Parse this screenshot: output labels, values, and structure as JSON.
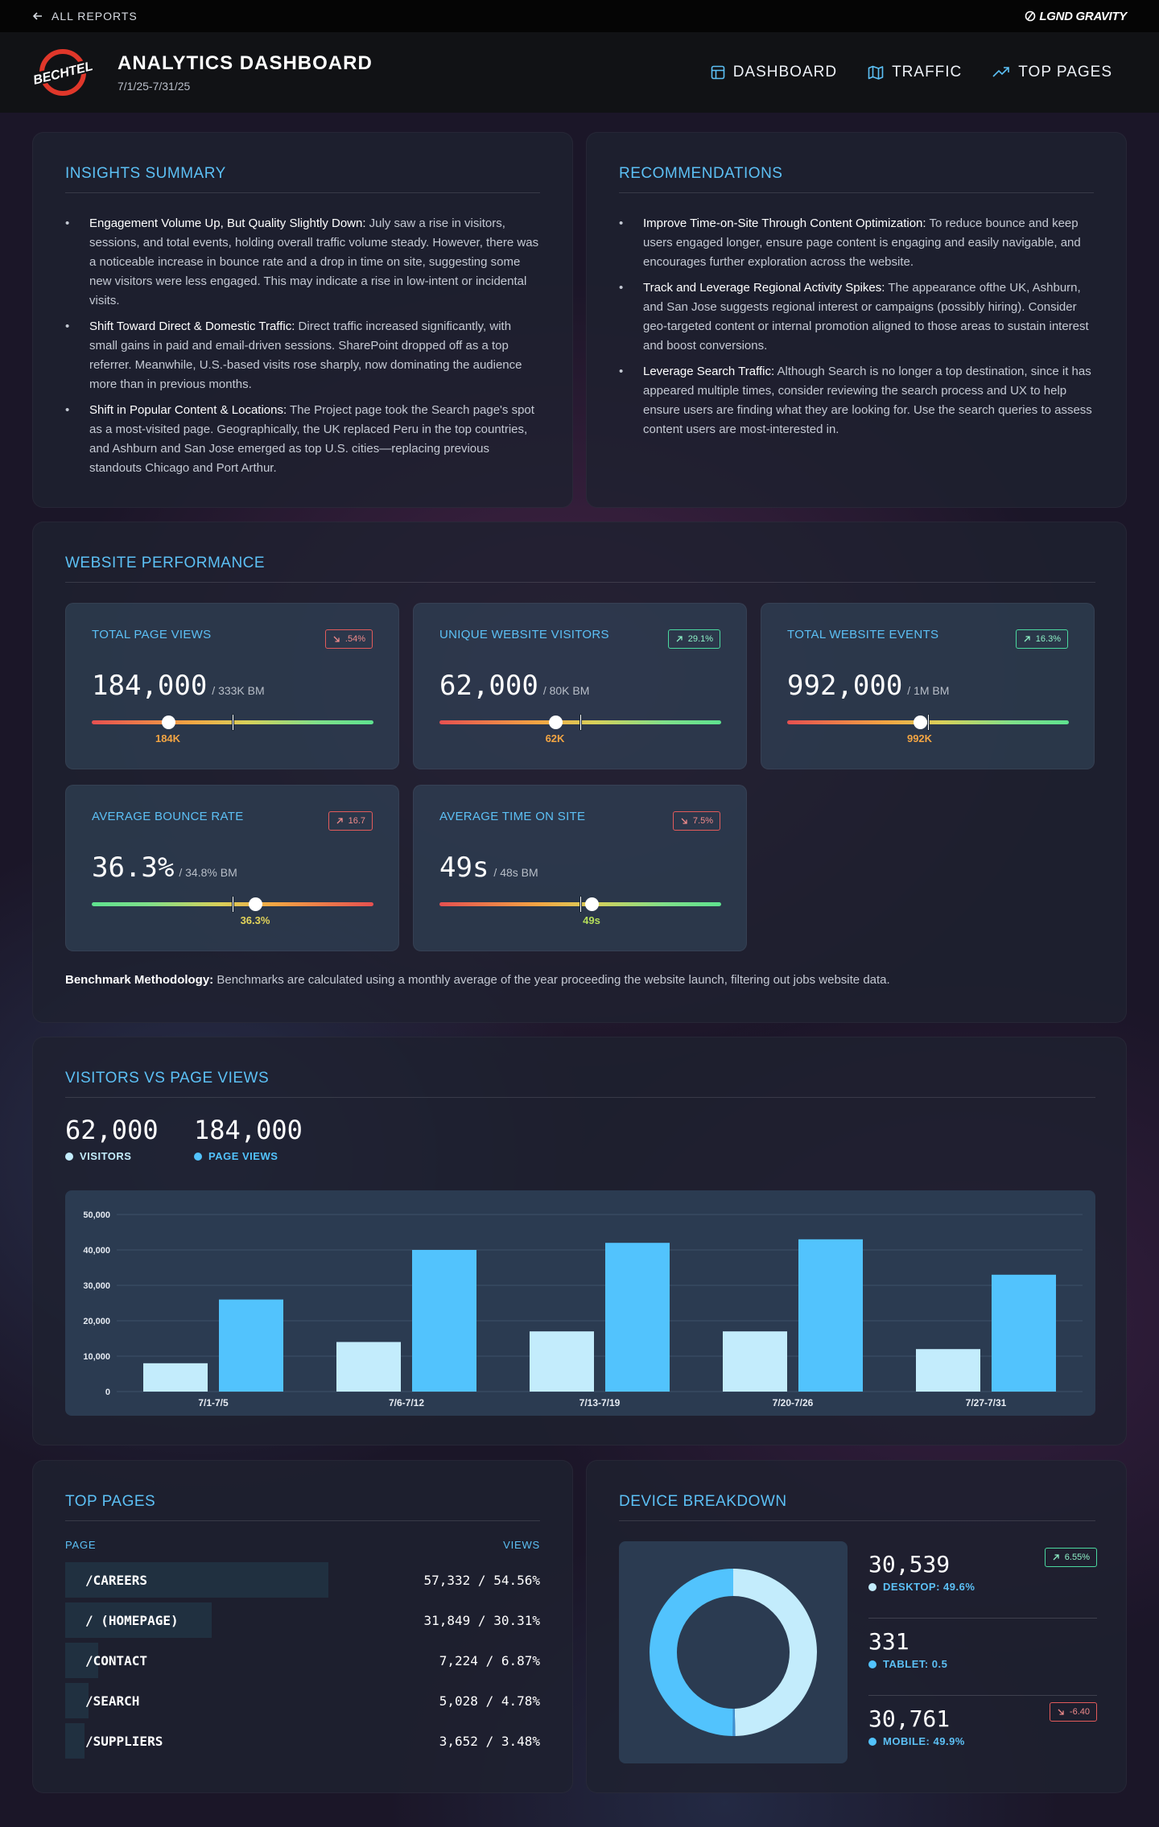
{
  "topbar": {
    "back_label": "ALL REPORTS",
    "brand": "LGND GRAVITY"
  },
  "header": {
    "logo_text": "BECHTEL",
    "title": "ANALYTICS DASHBOARD",
    "date_range": "7/1/25-7/31/25",
    "nav": [
      {
        "label": "DASHBOARD",
        "icon": "layout-icon"
      },
      {
        "label": "TRAFFIC",
        "icon": "map-icon"
      },
      {
        "label": "TOP PAGES",
        "icon": "trending-up-icon"
      }
    ]
  },
  "insights": {
    "title": "INSIGHTS SUMMARY",
    "items": [
      {
        "bold": "Engagement Volume Up, But Quality Slightly Down:",
        "text": " July saw a rise in visitors, sessions, and total events, holding overall traffic volume steady. However, there was a noticeable increase in bounce rate and a drop in time on site, suggesting some new visitors were less engaged. This may indicate a rise in low-intent or incidental visits."
      },
      {
        "bold": "Shift Toward Direct & Domestic Traffic:",
        "text": " Direct traffic increased significantly, with small gains in paid and email-driven sessions. SharePoint dropped off as a top referrer. Meanwhile, U.S.-based visits rose sharply, now dominating the audience more than in previous months."
      },
      {
        "bold": "Shift in Popular Content & Locations:",
        "text": " The Project page took the Search page's spot as a most-visited page. Geographically, the UK replaced Peru in the top countries, and Ashburn and San Jose emerged as top U.S. cities—replacing previous standouts Chicago and Port Arthur."
      }
    ]
  },
  "recommendations": {
    "title": "RECOMMENDATIONS",
    "items": [
      {
        "bold": "Improve Time-on-Site Through Content Optimization:",
        "text": " To reduce bounce and keep users engaged longer, ensure page content is engaging and easily navigable, and encourages further exploration across the website."
      },
      {
        "bold": "Track and Leverage Regional Activity Spikes:",
        "text": " The appearance ofthe UK, Ashburn, and San Jose suggests regional interest or campaigns (possibly hiring). Consider geo-targeted content or internal promotion aligned to those areas to sustain interest and boost conversions."
      },
      {
        "bold": "Leverage Search Traffic:",
        "text": " Although Search is no longer a top destination, since it has appeared multiple times, consider reviewing the search process and UX to help ensure users are finding what they are looking for. Use the search queries to assess content users are most-interested in."
      }
    ]
  },
  "performance": {
    "title": "WEBSITE PERFORMANCE",
    "kpis": [
      {
        "label": "TOTAL PAGE VIEWS",
        "badge": ".54%",
        "trend": "down",
        "value": "184,000",
        "benchmark": "/ 333K BM",
        "gauge_label": "184K",
        "gauge_value": 0.27,
        "benchmark_pos": 0.5,
        "direction": "bad-good",
        "label_color": "#f3a543"
      },
      {
        "label": "UNIQUE WEBSITE VISITORS",
        "badge": "29.1%",
        "trend": "up",
        "value": "62,000",
        "benchmark": "/ 80K BM",
        "gauge_label": "62K",
        "gauge_value": 0.41,
        "benchmark_pos": 0.5,
        "direction": "bad-good",
        "label_color": "#f3a543"
      },
      {
        "label": "TOTAL WEBSITE EVENTS",
        "badge": "16.3%",
        "trend": "up",
        "value": "992,000",
        "benchmark": "/ 1M BM",
        "gauge_label": "992K",
        "gauge_value": 0.47,
        "benchmark_pos": 0.5,
        "direction": "bad-good",
        "label_color": "#f3a543"
      },
      {
        "label": "AVERAGE BOUNCE RATE",
        "badge": "16.7",
        "trend": "up-red",
        "value": "36.3%",
        "benchmark": "/ 34.8% BM",
        "gauge_label": "36.3%",
        "gauge_value": 0.58,
        "benchmark_pos": 0.5,
        "direction": "good-bad",
        "label_color": "#e3d45a"
      },
      {
        "label": "AVERAGE TIME ON SITE",
        "badge": "7.5%",
        "trend": "down",
        "value": "49s",
        "benchmark": "/ 48s BM",
        "gauge_label": "49s",
        "gauge_value": 0.54,
        "benchmark_pos": 0.5,
        "direction": "bad-good",
        "label_color": "#b5de5a"
      }
    ],
    "methodology_bold": "Benchmark Methodology:",
    "methodology_text": " Benchmarks are calculated using a monthly average of the year proceeding the website launch, filtering out jobs website data."
  },
  "visitors_chart": {
    "title": "VISITORS VS PAGE VIEWS",
    "visitors_total": "62,000",
    "visitors_label": "VISITORS",
    "pageviews_total": "184,000",
    "pageviews_label": "PAGE VIEWS",
    "colors": {
      "visitors": "#c3ecfc",
      "pageviews": "#52c3fd"
    }
  },
  "chart_data": {
    "type": "bar",
    "categories": [
      "7/1-7/5",
      "7/6-7/12",
      "7/13-7/19",
      "7/20-7/26",
      "7/27-7/31"
    ],
    "series": [
      {
        "name": "VISITORS",
        "values": [
          8000,
          14000,
          17000,
          17000,
          12000
        ]
      },
      {
        "name": "PAGE VIEWS",
        "values": [
          26000,
          40000,
          42000,
          43000,
          33000
        ]
      }
    ],
    "yticks": [
      "50,000",
      "40,000",
      "30,000",
      "20,000",
      "10,000",
      "0"
    ],
    "ylim": [
      0,
      50000
    ],
    "grid": true
  },
  "top_pages": {
    "title": "TOP PAGES",
    "col_page": "PAGE",
    "col_views": "VIEWS",
    "rows": [
      {
        "page": "/CAREERS",
        "views": "57,332 / 54.56%",
        "share": 0.5456
      },
      {
        "page": "/ (HOMEPAGE)",
        "views": "31,849 / 30.31%",
        "share": 0.3031
      },
      {
        "page": "/CONTACT",
        "views": "7,224 / 6.87%",
        "share": 0.0687
      },
      {
        "page": "/SEARCH",
        "views": "5,028 / 4.78%",
        "share": 0.0478
      },
      {
        "page": "/SUPPLIERS",
        "views": "3,652 / 3.48%",
        "share": 0.0348
      }
    ]
  },
  "device": {
    "title": "DEVICE BREAKDOWN",
    "items": [
      {
        "value": "30,539",
        "label": "DESKTOP: 49.6%",
        "color": "#c3ecfc",
        "badge": "6.55%",
        "trend": "up",
        "share": 0.496
      },
      {
        "value": "331",
        "label": "TABLET: 0.5",
        "color": "#52c3fd",
        "badge": "",
        "trend": "",
        "share": 0.005
      },
      {
        "value": "30,761",
        "label": "MOBILE: 49.9%",
        "color": "#52c3fd",
        "badge": "-6.40",
        "trend": "down",
        "share": 0.499
      }
    ]
  }
}
